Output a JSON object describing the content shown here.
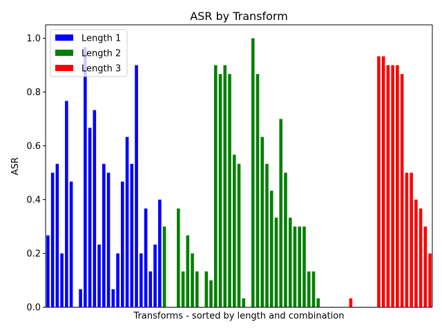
{
  "chart_data": {
    "type": "bar",
    "title": "ASR by Transform",
    "xlabel": "Transforms - sorted by length and combination",
    "ylabel": "ASR",
    "ylim": [
      0,
      1.05
    ],
    "yticks": [
      "0.0",
      "0.2",
      "0.4",
      "0.6",
      "0.8",
      "1.0"
    ],
    "grid": false,
    "legend_position": "top-left",
    "series": [
      {
        "name": "Length 1",
        "color": "#0000ff",
        "values": [
          0.267,
          0.5,
          0.533,
          0.2,
          0.767,
          0.467,
          0.0,
          0.067,
          0.967,
          0.667,
          0.733,
          0.233,
          0.533,
          0.5,
          0.067,
          0.2,
          0.467,
          0.633,
          0.533,
          0.9,
          0.2,
          0.367,
          0.133,
          0.233,
          0.4
        ]
      },
      {
        "name": "Length 2",
        "color": "#008000",
        "values": [
          0.3,
          0.0,
          0.0,
          0.367,
          0.133,
          0.267,
          0.2,
          0.133,
          0.0,
          0.133,
          0.1,
          0.9,
          0.867,
          0.9,
          0.867,
          0.567,
          0.533,
          0.033,
          0.0,
          1.0,
          0.867,
          0.633,
          0.533,
          0.433,
          0.333,
          0.7,
          0.5,
          0.333,
          0.3,
          0.3,
          0.3,
          0.133,
          0.133,
          0.033
        ]
      },
      {
        "name": "Length 3",
        "color": "#ff0000",
        "values": [
          0.0,
          0.0,
          0.0,
          0.0,
          0.0,
          0.0,
          0.033,
          0.0,
          0.0,
          0.0,
          0.0,
          0.0,
          0.933,
          0.933,
          0.9,
          0.9,
          0.9,
          0.867,
          0.5,
          0.5,
          0.4,
          0.367,
          0.3,
          0.2
        ]
      }
    ]
  }
}
